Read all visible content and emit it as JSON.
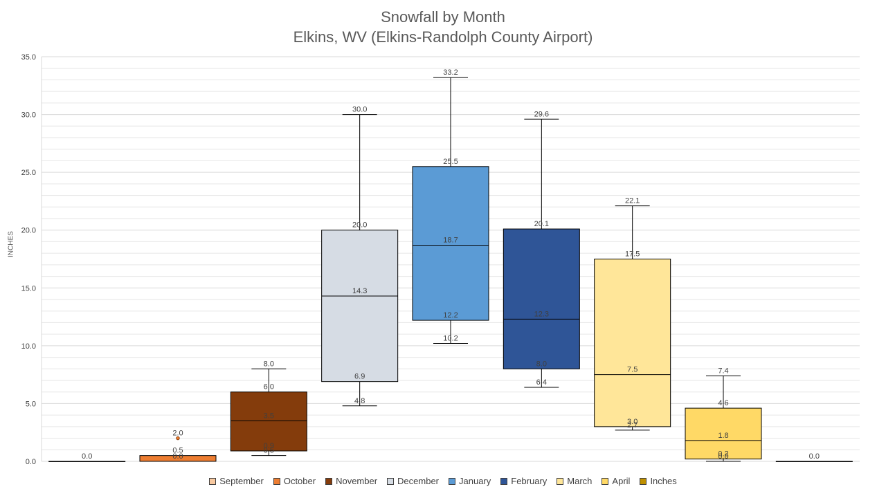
{
  "chart_data": {
    "type": "box",
    "title": "Snowfall by Month",
    "subtitle": "Elkins, WV (Elkins-Randolph County Airport)",
    "ylabel": "INCHES",
    "ylim": [
      0,
      35
    ],
    "yticks": [
      "0.0",
      "5.0",
      "10.0",
      "15.0",
      "20.0",
      "25.0",
      "30.0",
      "35.0"
    ],
    "grid": true,
    "legend_position": "bottom",
    "series": [
      {
        "name": "September",
        "color": "#f8c9a0",
        "min": 0.0,
        "q1": 0.0,
        "median": 0.0,
        "q3": 0.0,
        "max": 0.0,
        "outliers": [],
        "labels": [
          "0.0"
        ]
      },
      {
        "name": "October",
        "color": "#ed7d31",
        "min": 0.0,
        "q1": 0.0,
        "median": 0.0,
        "q3": 0.5,
        "max": 0.5,
        "outliers": [
          2.0
        ],
        "labels": [
          "2.0",
          "0.5",
          "0.0"
        ]
      },
      {
        "name": "November",
        "color": "#843c0c",
        "min": 0.5,
        "q1": 0.9,
        "median": 3.5,
        "q3": 6.0,
        "max": 8.0,
        "outliers": [],
        "labels": [
          "8.0",
          "6.0",
          "3.5",
          "0.9",
          "0.5"
        ]
      },
      {
        "name": "December",
        "color": "#d6dce4",
        "min": 4.8,
        "q1": 6.9,
        "median": 14.3,
        "q3": 20.0,
        "max": 30.0,
        "outliers": [],
        "labels": [
          "30.0",
          "20.0",
          "14.3",
          "6.9",
          "4.8"
        ]
      },
      {
        "name": "January",
        "color": "#5b9bd5",
        "min": 10.2,
        "q1": 12.2,
        "median": 18.7,
        "q3": 25.5,
        "max": 33.2,
        "outliers": [],
        "labels": [
          "33.2",
          "25.5",
          "18.7",
          "12.2",
          "10.2"
        ]
      },
      {
        "name": "February",
        "color": "#2f5597",
        "min": 6.4,
        "q1": 8.0,
        "median": 12.3,
        "q3": 20.1,
        "max": 29.6,
        "outliers": [],
        "labels": [
          "29.6",
          "20.1",
          "12.3",
          "8.0",
          "6.4"
        ]
      },
      {
        "name": "March",
        "color": "#ffe699",
        "min": 2.7,
        "q1": 3.0,
        "median": 7.5,
        "q3": 17.5,
        "max": 22.1,
        "outliers": [],
        "labels": [
          "22.1",
          "17.5",
          "7.5",
          "3.0",
          "2.7"
        ]
      },
      {
        "name": "April",
        "color": "#ffd966",
        "min": 0.0,
        "q1": 0.2,
        "median": 1.8,
        "q3": 4.6,
        "max": 7.4,
        "outliers": [],
        "labels": [
          "7.4",
          "4.6",
          "1.8",
          "0.2",
          "0.0"
        ]
      },
      {
        "name": "Inches",
        "color": "#bf9000",
        "min": 0.0,
        "q1": 0.0,
        "median": 0.0,
        "q3": 0.0,
        "max": 0.0,
        "outliers": [],
        "labels": [
          "0.0"
        ]
      }
    ]
  }
}
